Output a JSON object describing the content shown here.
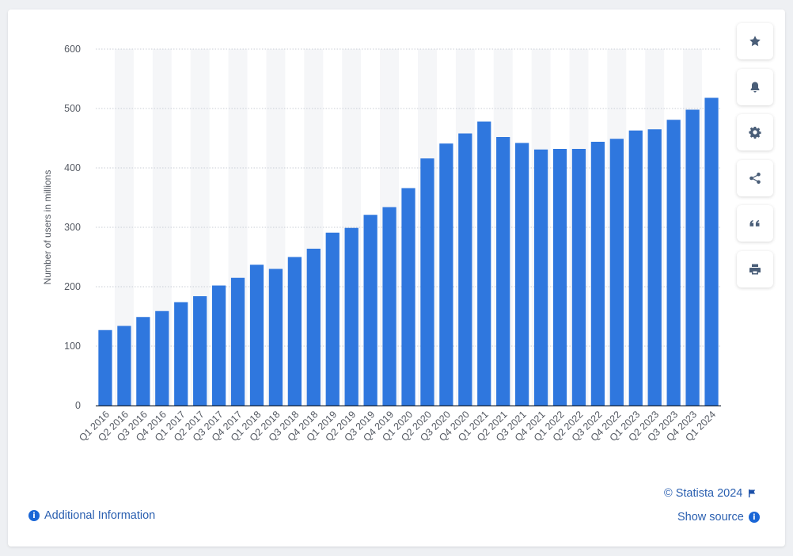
{
  "chart_data": {
    "type": "bar",
    "categories": [
      "Q1 2016",
      "Q2 2016",
      "Q3 2016",
      "Q4 2016",
      "Q1 2017",
      "Q2 2017",
      "Q3 2017",
      "Q4 2017",
      "Q1 2018",
      "Q2 2018",
      "Q3 2018",
      "Q4 2018",
      "Q1 2019",
      "Q2 2019",
      "Q3 2019",
      "Q4 2019",
      "Q1 2020",
      "Q2 2020",
      "Q3 2020",
      "Q4 2020",
      "Q1 2021",
      "Q2 2021",
      "Q3 2021",
      "Q4 2021",
      "Q1 2022",
      "Q2 2022",
      "Q3 2022",
      "Q4 2022",
      "Q1 2023",
      "Q2 2023",
      "Q3 2023",
      "Q4 2023",
      "Q1 2024"
    ],
    "values": [
      127,
      134,
      149,
      159,
      174,
      184,
      202,
      215,
      237,
      230,
      250,
      264,
      291,
      299,
      321,
      334,
      366,
      416,
      441,
      458,
      478,
      452,
      442,
      431,
      432,
      432,
      444,
      449,
      463,
      465,
      481,
      498,
      518
    ],
    "ylabel": "Number of users in millions",
    "ylim": [
      0,
      600
    ],
    "yticks": [
      0,
      100,
      200,
      300,
      400,
      500,
      600
    ],
    "grid": true,
    "bar_color": "#2f77de"
  },
  "footer": {
    "copyright": "© Statista 2024",
    "show_source": "Show source",
    "additional_info": "Additional Information"
  },
  "toolbar": {
    "icons": [
      "star-icon",
      "bell-icon",
      "gear-icon",
      "share-icon",
      "quote-icon",
      "print-icon"
    ]
  },
  "colors": {
    "accent": "#2f77de",
    "link": "#2a5fb0",
    "info_badge": "#1a66d6"
  }
}
